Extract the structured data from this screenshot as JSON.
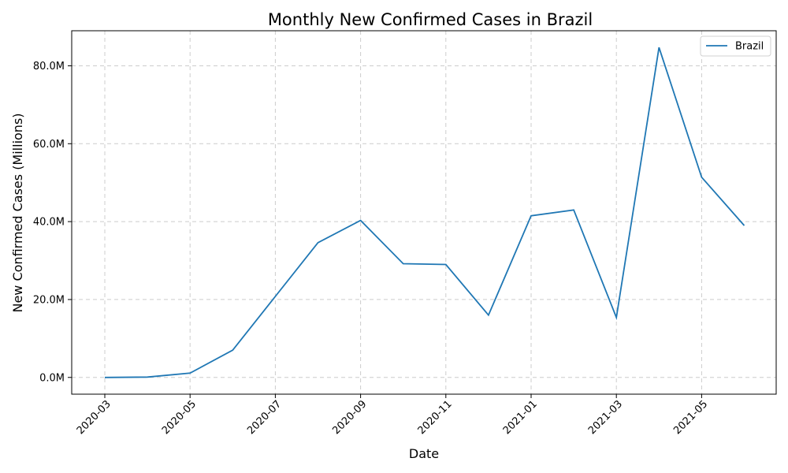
{
  "chart_data": {
    "type": "line",
    "title": "Monthly New Confirmed Cases in Brazil",
    "xlabel": "Date",
    "ylabel": "New Confirmed Cases (Millions)",
    "x": [
      "2020-03",
      "2020-04",
      "2020-05",
      "2020-06",
      "2020-07",
      "2020-08",
      "2020-09",
      "2020-10",
      "2020-11",
      "2020-12",
      "2021-01",
      "2021-02",
      "2021-03",
      "2021-04",
      "2021-05",
      "2021-06"
    ],
    "series": [
      {
        "name": "Brazil",
        "color": "#1f77b4",
        "values": [
          0.0,
          0.1,
          1.1,
          7.0,
          20.8,
          34.6,
          40.3,
          29.2,
          29.0,
          16.0,
          41.5,
          43.0,
          15.4,
          84.7,
          51.4,
          39.0
        ]
      }
    ],
    "xticks": [
      "2020-03",
      "2020-05",
      "2020-07",
      "2020-09",
      "2020-11",
      "2021-01",
      "2021-03",
      "2021-05"
    ],
    "yticks": [
      0,
      20,
      40,
      60,
      80
    ],
    "ytick_labels": [
      "0.0M",
      "20.0M",
      "40.0M",
      "60.0M",
      "80.0M"
    ],
    "ylim": [
      -4.3,
      89.0
    ],
    "grid": true,
    "legend_position": "top-right"
  }
}
